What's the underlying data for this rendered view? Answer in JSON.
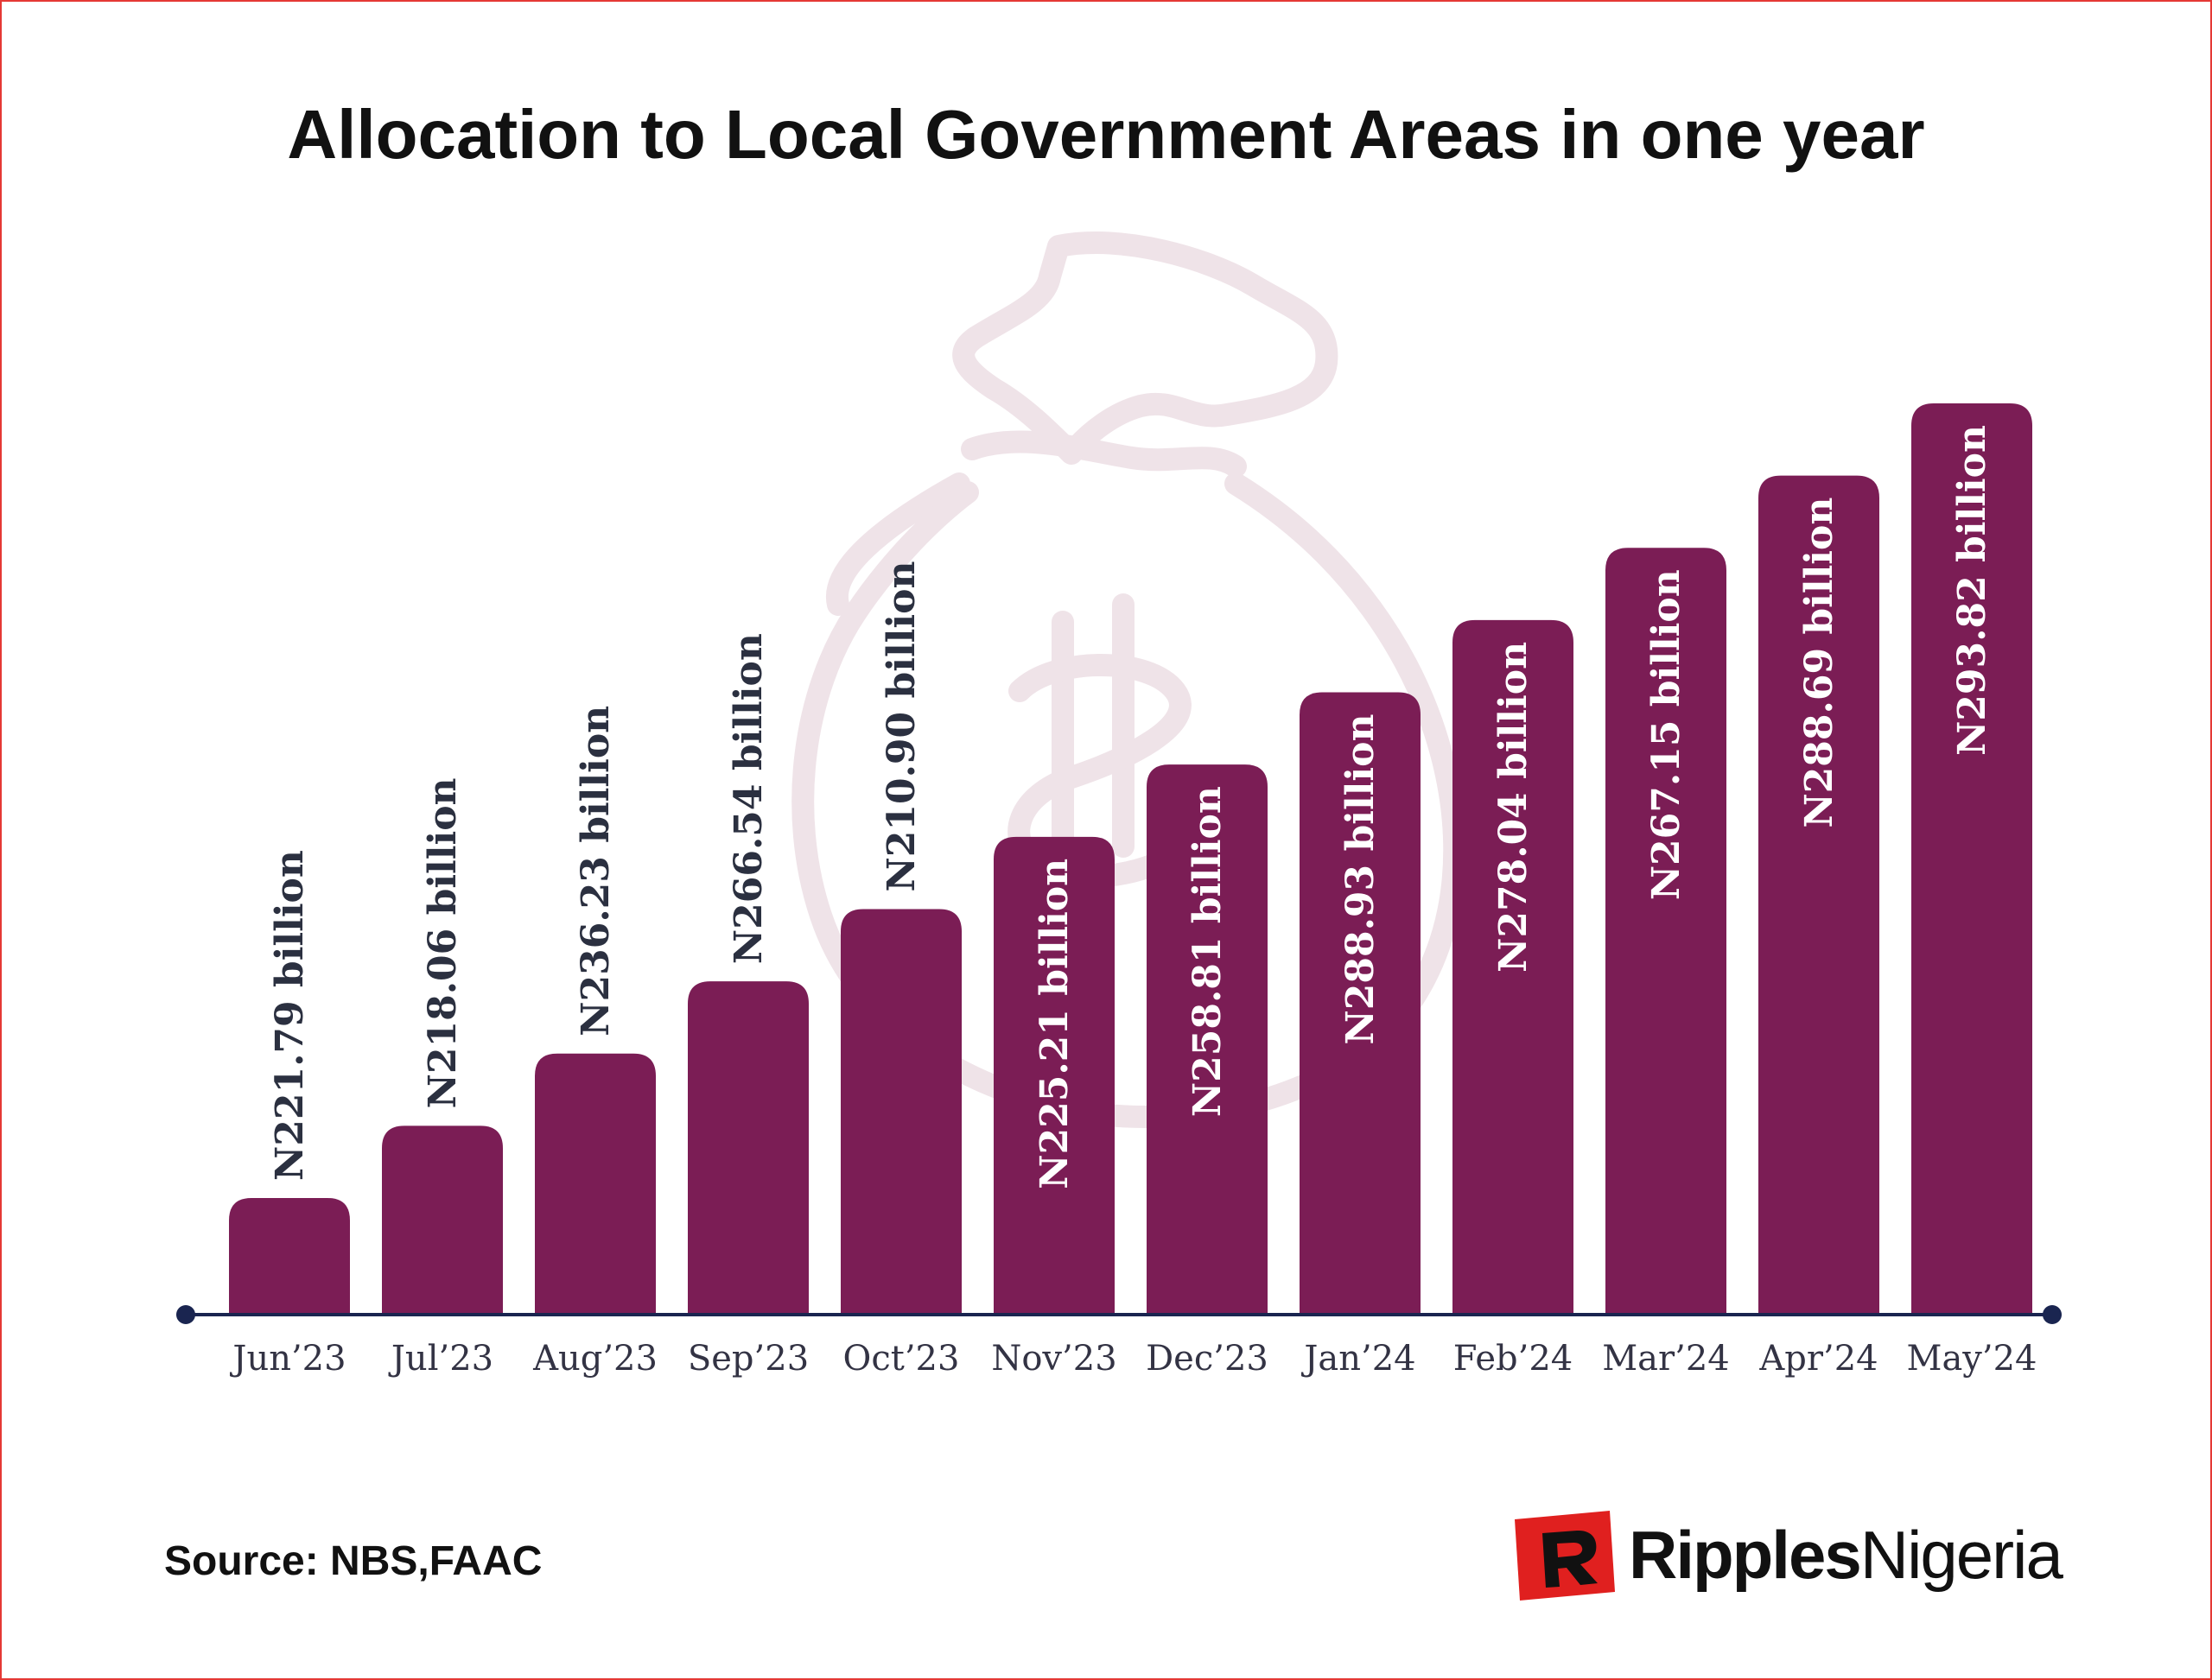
{
  "title": "Allocation to Local Government Areas in one year",
  "source": "Source: NBS,FAAC",
  "logo": {
    "part1": "Ripples",
    "part2": "Nigeria"
  },
  "colors": {
    "bar": "#7b1d55",
    "axis": "#1a2550",
    "inner_label": "#ffffff",
    "outer_label": "#2b3040",
    "watermark": "#efe3e8",
    "logo_red": "#e0201f"
  },
  "watermark_icon": "money-bag-icon",
  "chart_data": {
    "type": "bar",
    "title": "Allocation to Local Government Areas in one year",
    "categories": [
      "Jun’23",
      "Jul’23",
      "Aug’23",
      "Sep’23",
      "Oct’23",
      "Nov’23",
      "Dec’23",
      "Jan’24",
      "Feb’24",
      "Mar’24",
      "Apr’24",
      "May’24"
    ],
    "values": [
      221.79,
      218.06,
      236.23,
      266.54,
      210.9,
      225.21,
      258.81,
      288.93,
      278.04,
      267.15,
      288.69,
      293.82
    ],
    "labels": [
      "N221.79 billion",
      "N218.06 billion",
      "N236.23 billion",
      "N266.54 billion",
      "N210.90 billion",
      "N225.21 billion",
      "N258.81 billion",
      "N288.93 billion",
      "N278.04 billion",
      "N267.15 billion",
      "N288.69 billion",
      "N293.82 billion"
    ],
    "bar_height_rank": [
      1,
      2,
      3,
      4,
      5,
      6,
      7,
      8,
      9,
      10,
      11,
      12
    ],
    "label_inside_bar": [
      false,
      false,
      false,
      false,
      false,
      true,
      true,
      true,
      true,
      true,
      true,
      true
    ],
    "xlabel": "",
    "ylabel": "",
    "grid": false,
    "legend": "none"
  }
}
